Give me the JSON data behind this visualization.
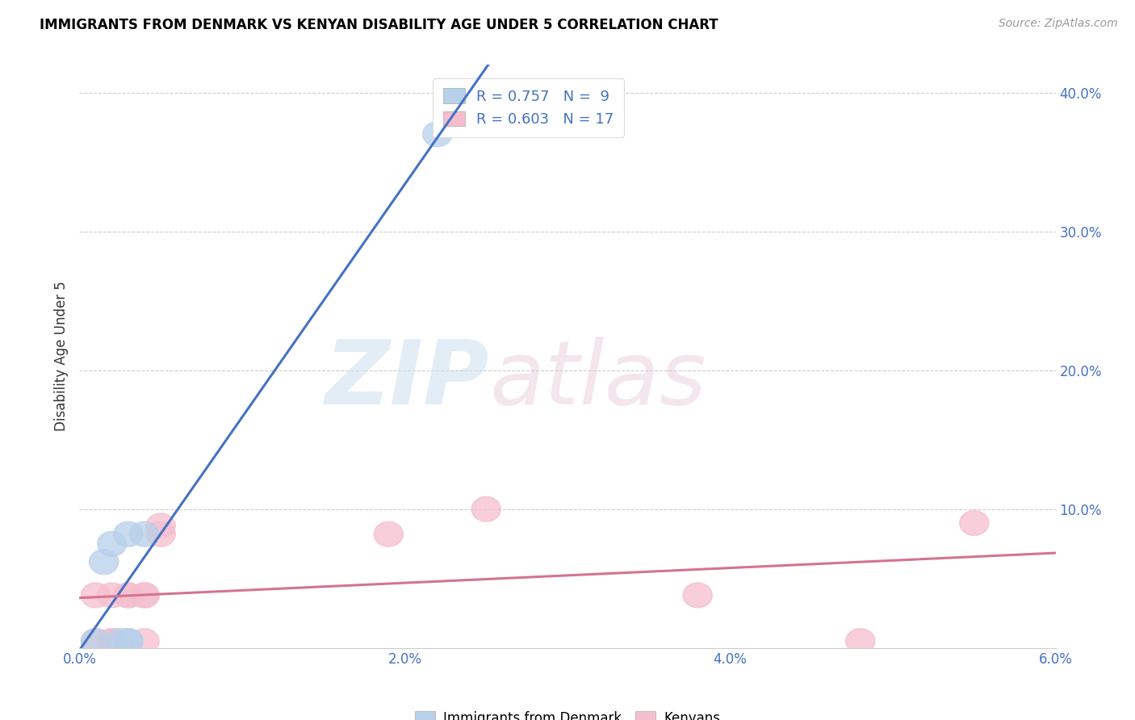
{
  "title": "IMMIGRANTS FROM DENMARK VS KENYAN DISABILITY AGE UNDER 5 CORRELATION CHART",
  "source": "Source: ZipAtlas.com",
  "ylabel": "Disability Age Under 5",
  "xlim": [
    0.0,
    0.06
  ],
  "ylim": [
    0.0,
    0.42
  ],
  "x_ticks": [
    0.0,
    0.01,
    0.02,
    0.03,
    0.04,
    0.05,
    0.06
  ],
  "x_tick_labels": [
    "0.0%",
    "",
    "2.0%",
    "",
    "4.0%",
    "",
    "6.0%"
  ],
  "y_ticks": [
    0.0,
    0.1,
    0.2,
    0.3,
    0.4
  ],
  "y_tick_labels": [
    "",
    "10.0%",
    "20.0%",
    "30.0%",
    "40.0%"
  ],
  "legend_label1": "R = 0.757   N =  9",
  "legend_label2": "R = 0.603   N = 17",
  "color_blue": "#b8d0ea",
  "color_pink": "#f5bece",
  "line_blue": "#4472c4",
  "line_pink": "#d4748e",
  "watermark_zip": "ZIP",
  "watermark_atlas": "atlas",
  "denmark_x": [
    0.001,
    0.0015,
    0.002,
    0.0025,
    0.003,
    0.003,
    0.003,
    0.004,
    0.022
  ],
  "denmark_y": [
    0.005,
    0.062,
    0.075,
    0.005,
    0.005,
    0.005,
    0.082,
    0.082,
    0.37
  ],
  "kenya_x": [
    0.001,
    0.001,
    0.002,
    0.002,
    0.002,
    0.003,
    0.003,
    0.004,
    0.004,
    0.004,
    0.005,
    0.005,
    0.019,
    0.025,
    0.038,
    0.048,
    0.055
  ],
  "kenya_y": [
    0.005,
    0.038,
    0.005,
    0.005,
    0.038,
    0.038,
    0.038,
    0.038,
    0.038,
    0.005,
    0.088,
    0.082,
    0.082,
    0.1,
    0.038,
    0.005,
    0.09
  ]
}
